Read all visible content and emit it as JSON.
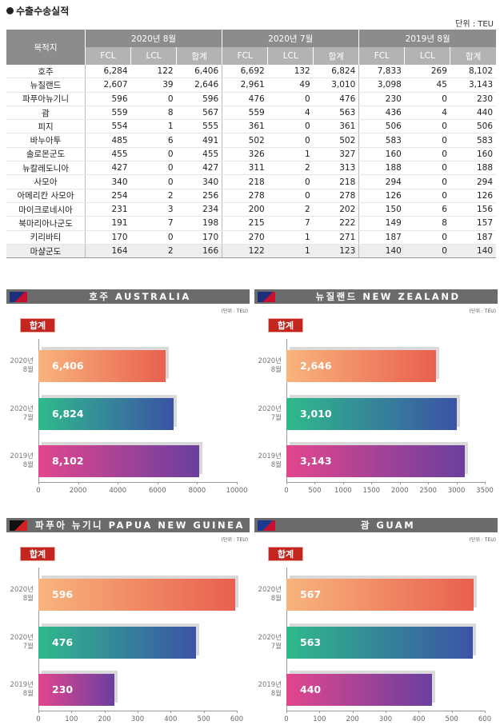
{
  "title": "수출수송실적",
  "unit": "단위 : TEU",
  "table": {
    "corner": "목적지",
    "groups": [
      "2020년 8월",
      "2020년 7월",
      "2019년 8월"
    ],
    "subheaders": [
      "FCL",
      "LCL",
      "합계"
    ],
    "rows": [
      [
        "호주",
        "6,284",
        "122",
        "6,406",
        "6,692",
        "132",
        "6,824",
        "7,833",
        "269",
        "8,102"
      ],
      [
        "뉴질랜드",
        "2,607",
        "39",
        "2,646",
        "2,961",
        "49",
        "3,010",
        "3,098",
        "45",
        "3,143"
      ],
      [
        "파푸아뉴기니",
        "596",
        "0",
        "596",
        "476",
        "0",
        "476",
        "230",
        "0",
        "230"
      ],
      [
        "괌",
        "559",
        "8",
        "567",
        "559",
        "4",
        "563",
        "436",
        "4",
        "440"
      ],
      [
        "피지",
        "554",
        "1",
        "555",
        "361",
        "0",
        "361",
        "506",
        "0",
        "506"
      ],
      [
        "바누아투",
        "485",
        "6",
        "491",
        "502",
        "0",
        "502",
        "583",
        "0",
        "583"
      ],
      [
        "솔로몬군도",
        "455",
        "0",
        "455",
        "326",
        "1",
        "327",
        "160",
        "0",
        "160"
      ],
      [
        "뉴칼레도니아",
        "427",
        "0",
        "427",
        "311",
        "2",
        "313",
        "188",
        "0",
        "188"
      ],
      [
        "사모아",
        "340",
        "0",
        "340",
        "218",
        "0",
        "218",
        "294",
        "0",
        "294"
      ],
      [
        "아메리칸 사모아",
        "254",
        "2",
        "256",
        "278",
        "0",
        "278",
        "126",
        "0",
        "126"
      ],
      [
        "마이크로네시아",
        "231",
        "3",
        "234",
        "200",
        "2",
        "202",
        "150",
        "6",
        "156"
      ],
      [
        "북마리아나군도",
        "191",
        "7",
        "198",
        "215",
        "7",
        "222",
        "149",
        "8",
        "157"
      ],
      [
        "키리바티",
        "170",
        "0",
        "170",
        "270",
        "1",
        "271",
        "187",
        "0",
        "187"
      ],
      [
        "마샬군도",
        "164",
        "2",
        "166",
        "122",
        "1",
        "123",
        "140",
        "0",
        "140"
      ]
    ]
  },
  "chart_data": [
    {
      "type": "bar",
      "title": "호주 AUSTRALIA",
      "unit_note": "(단위 : TEU)",
      "badge": "합계",
      "categories": [
        "2020년 8월",
        "2020년 7월",
        "2019년 8월"
      ],
      "values": [
        6406,
        6824,
        8102
      ],
      "value_labels": [
        "6,406",
        "6,824",
        "8,102"
      ],
      "colors": [
        [
          "#f8b47d",
          "#e9604e"
        ],
        [
          "#2fba8b",
          "#3b53a6"
        ],
        [
          "#e2468d",
          "#6a3f9f"
        ]
      ],
      "xlim": [
        0,
        10000
      ],
      "xticks": [
        0,
        2000,
        4000,
        6000,
        8000,
        10000
      ]
    },
    {
      "type": "bar",
      "title": "뉴질랜드 NEW ZEALAND",
      "unit_note": "(단위 : TEU)",
      "badge": "합계",
      "categories": [
        "2020년 8월",
        "2020년 7월",
        "2019년 8월"
      ],
      "values": [
        2646,
        3010,
        3143
      ],
      "value_labels": [
        "2,646",
        "3,010",
        "3,143"
      ],
      "colors": [
        [
          "#f8b47d",
          "#e9604e"
        ],
        [
          "#2fba8b",
          "#3b53a6"
        ],
        [
          "#e2468d",
          "#6a3f9f"
        ]
      ],
      "xlim": [
        0,
        3500
      ],
      "xticks": [
        0,
        500,
        1000,
        1500,
        2000,
        2500,
        3000,
        3500
      ]
    },
    {
      "type": "bar",
      "title": "파푸아 뉴기니 PAPUA NEW GUINEA",
      "unit_note": "(단위 : TEU)",
      "badge": "합계",
      "categories": [
        "2020년 8월",
        "2020년 7월",
        "2019년 8월"
      ],
      "values": [
        596,
        476,
        230
      ],
      "colors": [
        [
          "#f8b47d",
          "#e9604e"
        ],
        [
          "#2fba8b",
          "#3b53a6"
        ],
        [
          "#e2468d",
          "#6a3f9f"
        ]
      ],
      "xlim": [
        0,
        600
      ],
      "xticks": [
        0,
        100,
        200,
        300,
        400,
        500,
        600
      ]
    },
    {
      "type": "bar",
      "title": "괌 GUAM",
      "unit_note": "(단위 : TEU)",
      "badge": "합계",
      "categories": [
        "2020년 8월",
        "2020년 7월",
        "2019년 8월"
      ],
      "values": [
        567,
        563,
        440
      ],
      "colors": [
        [
          "#f8b47d",
          "#e9604e"
        ],
        [
          "#2fba8b",
          "#3b53a6"
        ],
        [
          "#e2468d",
          "#6a3f9f"
        ]
      ],
      "xlim": [
        0,
        600
      ],
      "xticks": [
        0,
        100,
        200,
        300,
        400,
        500,
        600
      ]
    }
  ]
}
